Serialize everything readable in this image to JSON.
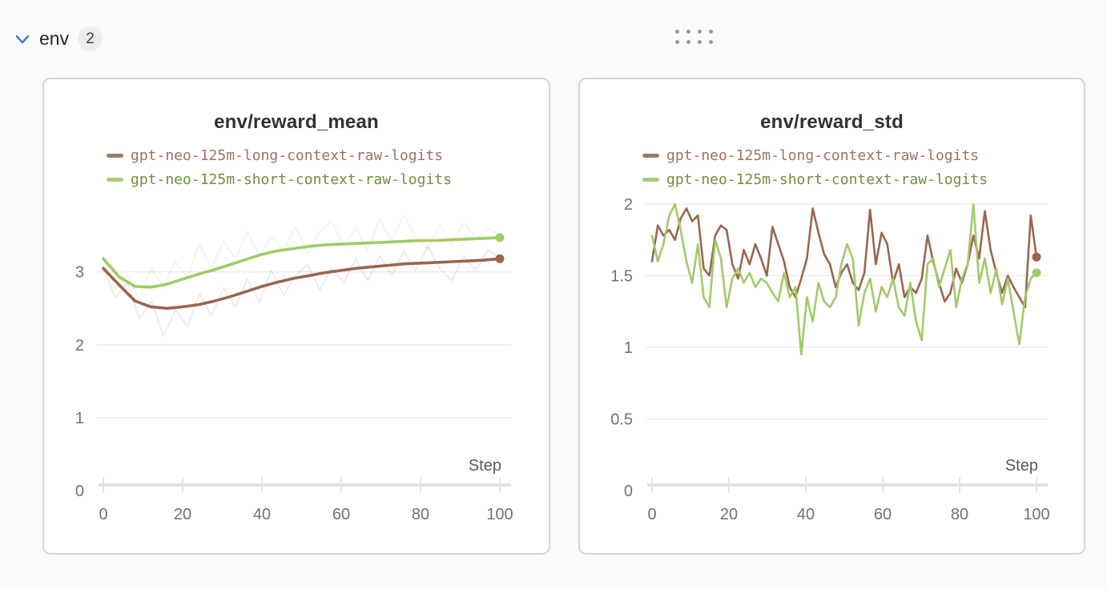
{
  "header": {
    "section_label": "env",
    "panel_count": "2"
  },
  "colors": {
    "accent_blue": "#4080c7",
    "long_context_line": "#98664f",
    "long_context_text": "#9e7261",
    "short_context_line": "#a3c968",
    "short_context_text": "#6f8f3d"
  },
  "chart_data": [
    {
      "type": "line",
      "title": "env/reward_mean",
      "xlabel": "Step",
      "x_ticks": [
        0,
        20,
        40,
        60,
        80,
        100
      ],
      "y_ticks": [
        0,
        1,
        2,
        3
      ],
      "xlim": [
        0,
        100
      ],
      "ylim": [
        0,
        3.93
      ],
      "grid": true,
      "legend_position": "top-left",
      "legend": [
        {
          "label": "gpt-neo-125m-long-context-raw-logits",
          "swatch": "#a07a68",
          "text": "#9e7261"
        },
        {
          "label": "gpt-neo-125m-short-context-raw-logits",
          "swatch": "#a5cd74",
          "text": "#6f8f3d"
        }
      ],
      "series": [
        {
          "name": "gpt-neo-125m-long-context-raw-logits (raw)",
          "role": "raw",
          "color": "#98664f",
          "opacity": 0.13,
          "width": 2.2,
          "end_dot": false,
          "values": [
            3.05,
            2.65,
            2.85,
            2.35,
            2.6,
            2.12,
            2.48,
            2.25,
            2.7,
            2.4,
            2.78,
            2.52,
            2.9,
            2.58,
            3.02,
            2.68,
            2.95,
            3.1,
            2.75,
            3.05,
            2.85,
            3.18,
            2.88,
            3.22,
            2.95,
            3.28,
            3.02,
            3.35,
            3.05,
            2.88,
            3.22,
            3.02,
            3.3,
            3.18
          ]
        },
        {
          "name": "gpt-neo-125m-short-context-raw-logits (raw)",
          "role": "raw",
          "color": "#a3c968",
          "opacity": 0.13,
          "width": 2.2,
          "end_dot": false,
          "values": [
            3.18,
            2.75,
            2.95,
            2.62,
            3.05,
            2.78,
            3.15,
            2.92,
            3.38,
            3.05,
            3.42,
            3.18,
            3.55,
            3.22,
            3.48,
            3.3,
            3.62,
            3.25,
            3.55,
            3.7,
            3.35,
            3.6,
            3.3,
            3.72,
            3.42,
            3.78,
            3.48,
            3.32,
            3.65,
            3.38,
            3.68,
            3.45,
            3.6,
            3.5
          ]
        },
        {
          "name": "gpt-neo-125m-long-context-raw-logits",
          "role": "smoothed",
          "color": "#98664f",
          "opacity": 1,
          "width": 3.6,
          "end_dot": true,
          "values": [
            3.05,
            2.82,
            2.6,
            2.52,
            2.5,
            2.52,
            2.55,
            2.6,
            2.66,
            2.73,
            2.8,
            2.86,
            2.91,
            2.95,
            2.99,
            3.02,
            3.05,
            3.07,
            3.09,
            3.11,
            3.12,
            3.13,
            3.14,
            3.15,
            3.16,
            3.18
          ]
        },
        {
          "name": "gpt-neo-125m-short-context-raw-logits",
          "role": "smoothed",
          "color": "#a3c968",
          "opacity": 1,
          "width": 3.6,
          "end_dot": true,
          "values": [
            3.18,
            2.93,
            2.8,
            2.79,
            2.83,
            2.9,
            2.97,
            3.03,
            3.1,
            3.17,
            3.24,
            3.29,
            3.32,
            3.35,
            3.37,
            3.38,
            3.39,
            3.4,
            3.41,
            3.42,
            3.43,
            3.43,
            3.44,
            3.45,
            3.46,
            3.47
          ]
        }
      ]
    },
    {
      "type": "line",
      "title": "env/reward_std",
      "xlabel": "Step",
      "x_ticks": [
        0,
        20,
        40,
        60,
        80,
        100
      ],
      "y_ticks": [
        0,
        0.5,
        1,
        1.5,
        2
      ],
      "xlim": [
        0,
        100
      ],
      "ylim": [
        0,
        2.0
      ],
      "grid": true,
      "legend_position": "top-left",
      "legend": [
        {
          "label": "gpt-neo-125m-long-context-raw-logits",
          "swatch": "#a07a68",
          "text": "#9e7261"
        },
        {
          "label": "gpt-neo-125m-short-context-raw-logits",
          "swatch": "#a5cd74",
          "text": "#6f8f3d"
        }
      ],
      "series": [
        {
          "name": "gpt-neo-125m-long-context-raw-logits",
          "role": "raw",
          "color": "#98664f",
          "opacity": 1,
          "width": 2.6,
          "end_dot": true,
          "values": [
            1.6,
            1.85,
            1.78,
            1.82,
            1.75,
            1.9,
            1.97,
            1.88,
            1.92,
            1.55,
            1.5,
            1.78,
            1.85,
            1.82,
            1.58,
            1.48,
            1.68,
            1.58,
            1.72,
            1.62,
            1.5,
            1.84,
            1.72,
            1.6,
            1.42,
            1.35,
            1.48,
            1.62,
            1.97,
            1.8,
            1.65,
            1.58,
            1.42,
            1.52,
            1.58,
            1.45,
            1.4,
            1.52,
            1.96,
            1.58,
            1.8,
            1.72,
            1.45,
            1.58,
            1.35,
            1.42,
            1.38,
            1.48,
            1.78,
            1.6,
            1.45,
            1.32,
            1.38,
            1.55,
            1.45,
            1.58,
            1.78,
            1.62,
            1.95,
            1.68,
            1.52,
            1.38,
            1.5,
            1.42,
            1.35,
            1.28,
            1.92,
            1.63
          ]
        },
        {
          "name": "gpt-neo-125m-short-context-raw-logits",
          "role": "raw",
          "color": "#a3c968",
          "opacity": 1,
          "width": 2.6,
          "end_dot": true,
          "values": [
            1.78,
            1.6,
            1.72,
            1.92,
            2.0,
            1.82,
            1.6,
            1.45,
            1.72,
            1.35,
            1.28,
            1.75,
            1.62,
            1.28,
            1.48,
            1.55,
            1.45,
            1.52,
            1.42,
            1.48,
            1.45,
            1.38,
            1.32,
            1.52,
            1.35,
            1.42,
            0.95,
            1.35,
            1.18,
            1.45,
            1.32,
            1.28,
            1.35,
            1.58,
            1.72,
            1.62,
            1.15,
            1.38,
            1.48,
            1.25,
            1.42,
            1.35,
            1.48,
            1.28,
            1.22,
            1.45,
            1.18,
            1.05,
            1.58,
            1.62,
            1.42,
            1.55,
            1.68,
            1.28,
            1.48,
            1.58,
            2.0,
            1.45,
            1.62,
            1.38,
            1.55,
            1.3,
            1.48,
            1.25,
            1.02,
            1.35,
            1.48,
            1.52
          ]
        }
      ]
    }
  ]
}
